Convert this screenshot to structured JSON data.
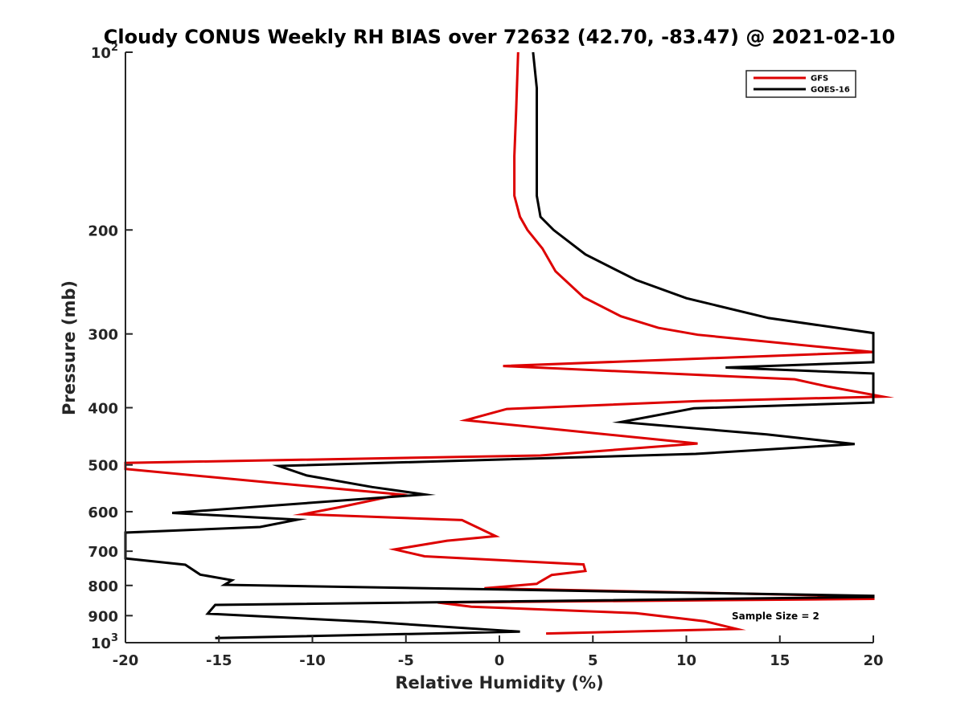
{
  "chart_data": {
    "type": "line",
    "title": "Cloudy CONUS Weekly RH BIAS over 72632 (42.70, -83.47) @ 2021-02-10",
    "xlabel": "Relative Humidity (%)",
    "ylabel": "Pressure (mb)",
    "xlim": [
      -20,
      20
    ],
    "ylim": [
      100,
      1000
    ],
    "y_scale": "log",
    "y_reversed": true,
    "grid": false,
    "legend_position": "top-right",
    "x_ticks": [
      "-20",
      "-15",
      "-10",
      "-5",
      "0",
      "5",
      "10",
      "15",
      "20"
    ],
    "y_ticks": [
      {
        "value": 100,
        "base": "10",
        "exp": "2"
      },
      {
        "value": 200,
        "label": "200"
      },
      {
        "value": 300,
        "label": "300"
      },
      {
        "value": 400,
        "label": "400"
      },
      {
        "value": 500,
        "label": "500"
      },
      {
        "value": 600,
        "label": "600"
      },
      {
        "value": 700,
        "label": "700"
      },
      {
        "value": 800,
        "label": "800"
      },
      {
        "value": 900,
        "label": "900"
      },
      {
        "value": 1000,
        "base": "10",
        "exp": "3"
      }
    ],
    "annotation": "Sample Size = 2",
    "series": [
      {
        "name": "GFS",
        "color": "#dd0000",
        "points": [
          [
            1.0,
            100
          ],
          [
            0.9,
            125
          ],
          [
            0.8,
            150
          ],
          [
            0.8,
            175
          ],
          [
            1.1,
            190
          ],
          [
            1.5,
            200
          ],
          [
            2.3,
            215
          ],
          [
            3.0,
            235
          ],
          [
            4.5,
            260
          ],
          [
            6.5,
            280
          ],
          [
            8.5,
            293
          ],
          [
            10.6,
            301
          ],
          [
            20.0,
            322
          ],
          [
            0.2,
            340
          ],
          [
            15.8,
            358
          ],
          [
            17.5,
            368
          ],
          [
            20.5,
            383
          ],
          [
            10.5,
            390
          ],
          [
            0.4,
            402
          ],
          [
            -1.8,
            420
          ],
          [
            10.6,
            460
          ],
          [
            2.2,
            482
          ],
          [
            -20.0,
            496
          ],
          [
            -20.0,
            508
          ],
          [
            -10.8,
            541
          ],
          [
            -5.3,
            561
          ],
          [
            -8.6,
            590
          ],
          [
            -10.5,
            606
          ],
          [
            -2.0,
            620
          ],
          [
            -0.2,
            660
          ],
          [
            -2.8,
            672
          ],
          [
            -5.6,
            695
          ],
          [
            -4.0,
            714
          ],
          [
            4.5,
            737
          ],
          [
            4.6,
            756
          ],
          [
            2.8,
            768
          ],
          [
            2.1,
            791
          ],
          [
            2.0,
            795
          ],
          [
            -0.8,
            809
          ],
          [
            20.0,
            835
          ],
          [
            20.0,
            843
          ],
          [
            -3.3,
            855
          ],
          [
            -1.5,
            869
          ],
          [
            7.3,
            891
          ],
          [
            11.0,
            920
          ],
          [
            12.7,
            948
          ],
          [
            2.5,
            965
          ]
        ]
      },
      {
        "name": "GOES-16",
        "color": "#000000",
        "points": [
          [
            1.8,
            100
          ],
          [
            2.0,
            115
          ],
          [
            2.0,
            150
          ],
          [
            2.0,
            175
          ],
          [
            2.2,
            190
          ],
          [
            2.9,
            200
          ],
          [
            4.6,
            220
          ],
          [
            7.3,
            243
          ],
          [
            10.0,
            261
          ],
          [
            14.4,
            282
          ],
          [
            20.0,
            299
          ],
          [
            20.0,
            335
          ],
          [
            12.1,
            342
          ],
          [
            20.0,
            350
          ],
          [
            20.0,
            392
          ],
          [
            10.4,
            401
          ],
          [
            6.5,
            423
          ],
          [
            14.3,
            444
          ],
          [
            19.0,
            461
          ],
          [
            10.5,
            479
          ],
          [
            -11.8,
            502
          ],
          [
            -10.3,
            521
          ],
          [
            -6.8,
            545
          ],
          [
            -4.0,
            561
          ],
          [
            -17.5,
            603
          ],
          [
            -10.8,
            619
          ],
          [
            -12.8,
            637
          ],
          [
            -20.0,
            651
          ],
          [
            -20.0,
            720
          ],
          [
            -16.8,
            738
          ],
          [
            -16.0,
            767
          ],
          [
            -14.3,
            784
          ],
          [
            -14.7,
            798
          ],
          [
            20.0,
            833
          ],
          [
            20.0,
            837
          ],
          [
            -15.2,
            863
          ],
          [
            -15.6,
            893
          ],
          [
            -6.9,
            922
          ],
          [
            1.1,
            958
          ],
          [
            -15.2,
            982
          ]
        ]
      }
    ]
  }
}
